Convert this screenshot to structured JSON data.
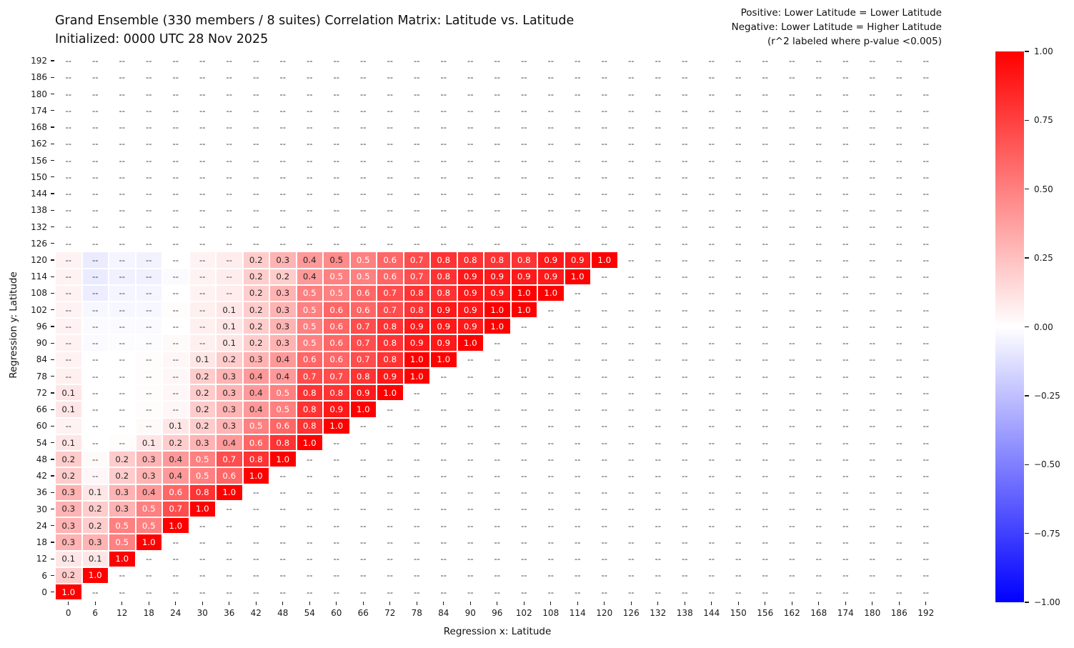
{
  "chart_data": {
    "type": "heatmap",
    "title_line1": "Grand Ensemble (330 members / 8 suites) Correlation Matrix: Latitude vs. Latitude",
    "title_line2": "Initialized: 0000 UTC 28 Nov 2025",
    "annotation_line1": "Positive: Lower Latitude = Lower Latitude",
    "annotation_line2": "Negative: Lower Latitude = Higher Latitude",
    "annotation_line3": "(r^2 labeled where p-value <0.005)",
    "xlabel": "Regression x: Latitude",
    "ylabel": "Regression y: Latitude",
    "missing_label": "--",
    "colormap": "blue-white-red",
    "vmin": -1.0,
    "vmax": 1.0,
    "label_rule": "r^2 shown to 1 decimal where significant; -- elsewhere",
    "x_ticks": [
      0,
      6,
      12,
      18,
      24,
      30,
      36,
      42,
      48,
      54,
      60,
      66,
      72,
      78,
      84,
      90,
      96,
      102,
      108,
      114,
      120,
      126,
      132,
      138,
      144,
      150,
      156,
      162,
      168,
      174,
      180,
      186,
      192
    ],
    "y_ticks_top_to_bottom": [
      192,
      186,
      180,
      174,
      168,
      162,
      156,
      150,
      144,
      138,
      132,
      126,
      120,
      114,
      108,
      102,
      96,
      90,
      84,
      78,
      72,
      66,
      60,
      54,
      48,
      42,
      36,
      30,
      24,
      18,
      12,
      6,
      0
    ],
    "colorbar_ticks": [
      "1.00",
      "0.75",
      "0.50",
      "0.25",
      "0.00",
      "−0.25",
      "−0.50",
      "−0.75",
      "−1.00"
    ],
    "rows_note": "rows listed top-to-bottom (y=192..0); cells listed left-to-right from x=0, padded with null; null = no data (--, white); |v|<0.095 = unlabeled faint tint shown as --; |v|>=0.095 = labeled r^2 value",
    "rows": [
      {
        "y": 192,
        "cells": []
      },
      {
        "y": 186,
        "cells": []
      },
      {
        "y": 180,
        "cells": []
      },
      {
        "y": 174,
        "cells": []
      },
      {
        "y": 168,
        "cells": []
      },
      {
        "y": 162,
        "cells": []
      },
      {
        "y": 156,
        "cells": []
      },
      {
        "y": 150,
        "cells": []
      },
      {
        "y": 144,
        "cells": []
      },
      {
        "y": 138,
        "cells": []
      },
      {
        "y": 132,
        "cells": []
      },
      {
        "y": 126,
        "cells": []
      },
      {
        "y": 120,
        "cells": [
          0.05,
          -0.08,
          -0.04,
          -0.05,
          null,
          0.05,
          0.07,
          0.2,
          0.3,
          0.4,
          0.46,
          0.5,
          0.6,
          0.7,
          0.8,
          0.8,
          0.8,
          0.8,
          0.9,
          0.9,
          1.0
        ]
      },
      {
        "y": 114,
        "cells": [
          0.05,
          -0.08,
          -0.06,
          -0.06,
          -0.02,
          0.05,
          0.07,
          0.2,
          0.2,
          0.4,
          0.5,
          0.5,
          0.6,
          0.7,
          0.8,
          0.9,
          0.9,
          0.9,
          0.9,
          1.0
        ]
      },
      {
        "y": 108,
        "cells": [
          0.05,
          -0.07,
          -0.04,
          -0.04,
          null,
          0.05,
          0.07,
          0.2,
          0.3,
          0.5,
          0.5,
          0.6,
          0.7,
          0.8,
          0.8,
          0.9,
          0.9,
          1.0,
          1.0
        ]
      },
      {
        "y": 102,
        "cells": [
          0.05,
          -0.03,
          -0.03,
          -0.03,
          0.01,
          0.06,
          0.1,
          0.2,
          0.3,
          0.5,
          0.6,
          0.6,
          0.7,
          0.8,
          0.9,
          0.9,
          1.0,
          1.0
        ]
      },
      {
        "y": 96,
        "cells": [
          0.05,
          -0.02,
          -0.02,
          -0.02,
          null,
          0.06,
          0.1,
          0.2,
          0.3,
          0.5,
          0.6,
          0.7,
          0.8,
          0.9,
          0.9,
          0.9,
          1.0
        ]
      },
      {
        "y": 90,
        "cells": [
          0.05,
          -0.02,
          -0.01,
          -0.01,
          0.02,
          0.06,
          0.1,
          0.2,
          0.3,
          0.5,
          0.6,
          0.7,
          0.8,
          0.9,
          0.9,
          1.0
        ]
      },
      {
        "y": 84,
        "cells": [
          0.05,
          null,
          null,
          0.01,
          0.03,
          0.1,
          0.2,
          0.3,
          0.4,
          0.6,
          0.6,
          0.7,
          0.8,
          1.0,
          1.0
        ]
      },
      {
        "y": 78,
        "cells": [
          0.06,
          null,
          null,
          0.01,
          0.03,
          0.2,
          0.3,
          0.4,
          0.4,
          0.7,
          0.7,
          0.8,
          0.9,
          1.0
        ]
      },
      {
        "y": 72,
        "cells": [
          0.1,
          null,
          null,
          0.01,
          0.03,
          0.2,
          0.3,
          0.4,
          0.5,
          0.8,
          0.8,
          0.9,
          1.0
        ]
      },
      {
        "y": 66,
        "cells": [
          0.1,
          null,
          null,
          0.01,
          0.03,
          0.2,
          0.3,
          0.4,
          0.5,
          0.8,
          0.9,
          1.0
        ]
      },
      {
        "y": 60,
        "cells": [
          0.05,
          null,
          null,
          0.02,
          0.1,
          0.2,
          0.3,
          0.5,
          0.6,
          0.8,
          1.0
        ]
      },
      {
        "y": 54,
        "cells": [
          0.1,
          null,
          0.01,
          0.1,
          0.2,
          0.3,
          0.4,
          0.6,
          0.8,
          1.0
        ]
      },
      {
        "y": 48,
        "cells": [
          0.2,
          0.02,
          0.2,
          0.3,
          0.4,
          0.5,
          0.7,
          0.8,
          1.0
        ]
      },
      {
        "y": 42,
        "cells": [
          0.2,
          0.03,
          0.2,
          0.3,
          0.4,
          0.5,
          0.6,
          1.0
        ]
      },
      {
        "y": 36,
        "cells": [
          0.3,
          0.1,
          0.3,
          0.4,
          0.6,
          0.8,
          1.0
        ]
      },
      {
        "y": 30,
        "cells": [
          0.3,
          0.2,
          0.3,
          0.5,
          0.7,
          1.0
        ]
      },
      {
        "y": 24,
        "cells": [
          0.3,
          0.2,
          0.5,
          0.5,
          1.0
        ]
      },
      {
        "y": 18,
        "cells": [
          0.3,
          0.3,
          0.5,
          1.0
        ]
      },
      {
        "y": 12,
        "cells": [
          0.1,
          0.1,
          1.0
        ]
      },
      {
        "y": 6,
        "cells": [
          0.2,
          1.0
        ]
      },
      {
        "y": 0,
        "cells": [
          1.0
        ]
      }
    ]
  },
  "colors": {
    "positive_max": "#ff0000",
    "negative_max": "#0000ff",
    "zero": "#ffffff",
    "cell_label_dark": "#262626",
    "cell_label_light": "#ffffff",
    "missing_text": "#3a3a3a",
    "tick_text": "#1a1a1a"
  }
}
